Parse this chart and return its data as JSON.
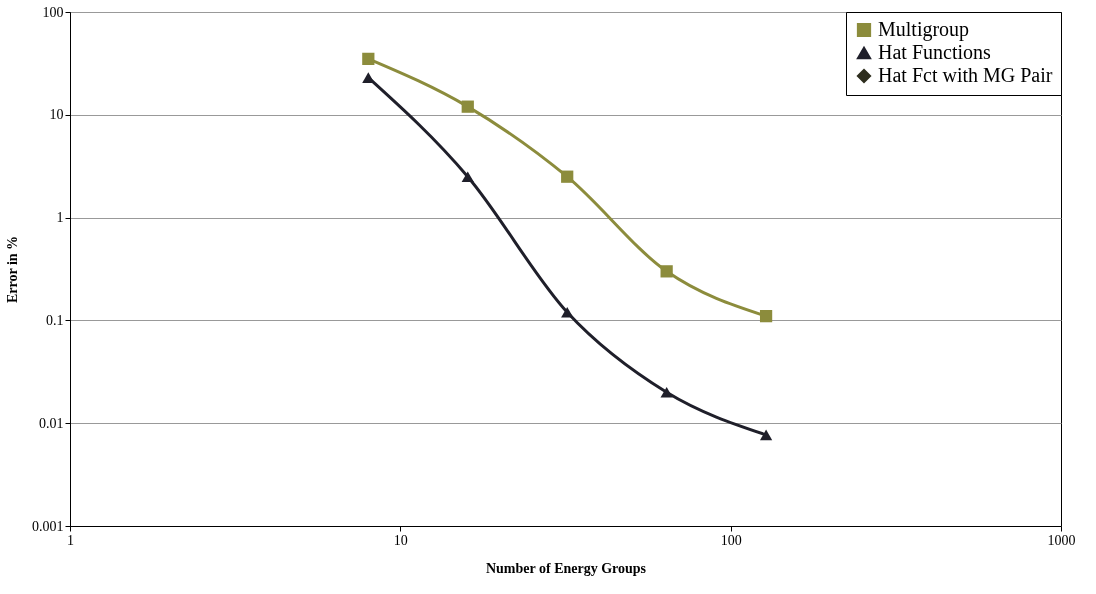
{
  "chart_data": {
    "type": "line",
    "xlabel": "Number of Energy Groups",
    "ylabel": "Error in %",
    "log": "xy",
    "grid": "y",
    "legend": "top right",
    "xlim": [
      1,
      1000
    ],
    "xticks": [
      1,
      10,
      100,
      1000
    ],
    "ylim": [
      0.001,
      100
    ],
    "yticks": [
      0.001,
      0.01,
      0.1,
      1,
      10,
      100
    ],
    "x": [
      8,
      16,
      32,
      64,
      128
    ],
    "series": [
      {
        "name": "Multigroup",
        "color": "#8c8c3c",
        "marker": "square",
        "values": [
          35,
          12,
          2.5,
          0.3,
          0.11
        ]
      },
      {
        "name": "Hat Functions",
        "color": "#1f1f2a",
        "marker": "triangle",
        "values": [
          23,
          2.5,
          0.12,
          0.02,
          0.0077
        ]
      },
      {
        "name": "Hat Fct with MG Pair",
        "color": "#2e2e1e",
        "marker": "diamond",
        "values": [
          null,
          null,
          null,
          null,
          null
        ]
      }
    ]
  }
}
